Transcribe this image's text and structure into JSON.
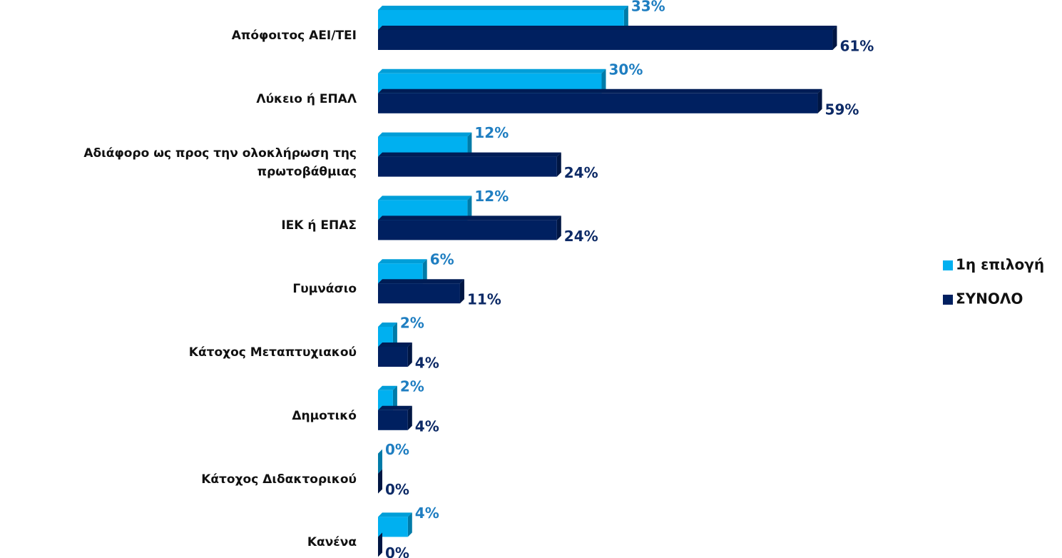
{
  "chart_data": {
    "type": "bar",
    "orientation": "horizontal",
    "categories": [
      "Απόφοιτος ΑΕΙ/ΤΕΙ",
      "Λύκειο ή ΕΠΑΛ",
      "Αδιάφορο ως προς την ολοκλήρωση της\nπρωτοβάθμιας",
      "ΙΕΚ ή ΕΠΑΣ",
      "Γυμνάσιο",
      "Κάτοχος Μεταπτυχιακού",
      "Δημοτικό",
      "Κάτοχος Διδακτορικού",
      "Κανένα"
    ],
    "series": [
      {
        "name": "1η επιλογή",
        "color": "#00b0f0",
        "label_color": "#1f7ec1",
        "values": [
          33,
          30,
          12,
          12,
          6,
          2,
          2,
          0,
          4
        ],
        "value_labels": [
          "33%",
          "30%",
          "12%",
          "12%",
          "6%",
          "2%",
          "2%",
          "0%",
          "4%"
        ]
      },
      {
        "name": "ΣΥΝΟΛΟ",
        "color": "#002060",
        "label_color": "#0d2a66",
        "values": [
          61,
          59,
          24,
          24,
          11,
          4,
          4,
          0,
          0
        ],
        "value_labels": [
          "61%",
          "59%",
          "24%",
          "24%",
          "11%",
          "4%",
          "4%",
          "0%",
          "0%"
        ]
      }
    ],
    "legend": "right"
  }
}
